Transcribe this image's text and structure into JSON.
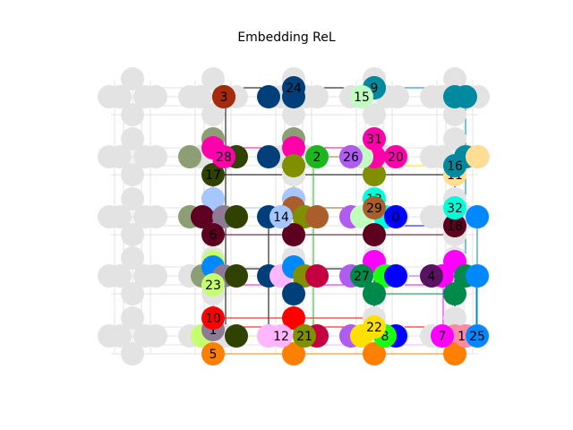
{
  "title": "Embedding ReL",
  "colors": {
    "grid_node": "#e3e3e3",
    "grid_edge": "#e3e3e3"
  },
  "nodes": [
    {
      "id": "0",
      "label": "0",
      "color": "#0000ff"
    },
    {
      "id": "1",
      "label": "1",
      "color": "#8d7b96"
    },
    {
      "id": "2",
      "label": "2",
      "color": "#1fb51f"
    },
    {
      "id": "3",
      "label": "3",
      "color": "#a62a0d"
    },
    {
      "id": "4",
      "label": "4",
      "color": "#5a1360"
    },
    {
      "id": "5",
      "label": "5",
      "color": "#ff8000"
    },
    {
      "id": "6",
      "label": "6",
      "color": "#5e0020"
    },
    {
      "id": "7",
      "label": "7",
      "color": "#ff00ff"
    },
    {
      "id": "8",
      "label": "8",
      "color": "#18ff10"
    },
    {
      "id": "9",
      "label": "9",
      "color": "#00899f"
    },
    {
      "id": "10",
      "label": "10",
      "color": "#ff0000"
    },
    {
      "id": "11",
      "label": "11",
      "color": "#ffde94"
    },
    {
      "id": "12",
      "label": "12",
      "color": "#ffb6ff"
    },
    {
      "id": "13",
      "label": "13",
      "color": "#00ffd8"
    },
    {
      "id": "14",
      "label": "14",
      "color": "#a5c6ff"
    },
    {
      "id": "15",
      "label": "15",
      "color": "#c1ffc1"
    },
    {
      "id": "16",
      "label": "16",
      "color": "#00899f"
    },
    {
      "id": "17",
      "label": "17",
      "color": "#2f4200"
    },
    {
      "id": "18",
      "label": "18",
      "color": "#5e0020"
    },
    {
      "id": "19",
      "label": "19",
      "color": "#ff8aa6"
    },
    {
      "id": "20",
      "label": "20",
      "color": "#ff00aa"
    },
    {
      "id": "21",
      "label": "21",
      "color": "#7f8f00"
    },
    {
      "id": "22",
      "label": "22",
      "color": "#ffe000"
    },
    {
      "id": "23",
      "label": "23",
      "color": "#c5ff70"
    },
    {
      "id": "24",
      "label": "24",
      "color": "#003f7a"
    },
    {
      "id": "25",
      "label": "25",
      "color": "#0088ff"
    },
    {
      "id": "26",
      "label": "26",
      "color": "#b05cf0"
    },
    {
      "id": "27",
      "label": "27",
      "color": "#00894a"
    },
    {
      "id": "28",
      "label": "28",
      "color": "#ff00aa"
    },
    {
      "id": "29",
      "label": "29",
      "color": "#a95e2c"
    },
    {
      "id": "31",
      "label": "31",
      "color": "#ff00aa"
    },
    {
      "id": "32",
      "label": "32",
      "color": "#00ffd8"
    }
  ]
}
